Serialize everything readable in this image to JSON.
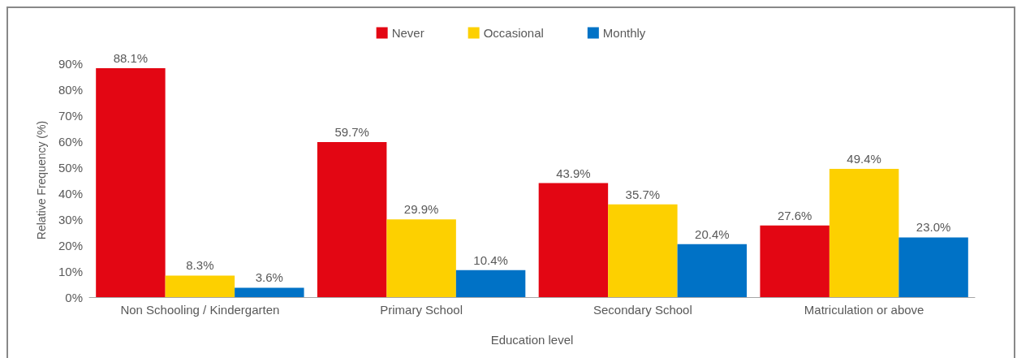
{
  "chart_data": {
    "type": "bar",
    "xlabel": "Education level",
    "ylabel": "Relative Frequency (%)",
    "categories": [
      "Non Schooling / Kindergarten",
      "Primary School",
      "Secondary School",
      "Matriculation or above"
    ],
    "series": [
      {
        "name": "Never",
        "color": "#e30613",
        "values": [
          88.1,
          59.7,
          43.9,
          27.6
        ],
        "value_labels": [
          "88.1%",
          "59.7%",
          "43.9%",
          "27.6%"
        ]
      },
      {
        "name": "Occasional",
        "color": "#fdd000",
        "values": [
          8.3,
          29.9,
          35.7,
          49.4
        ],
        "value_labels": [
          "8.3%",
          "29.9%",
          "35.7%",
          "49.4%"
        ]
      },
      {
        "name": "Monthly",
        "color": "#0072c6",
        "values": [
          3.6,
          10.4,
          20.4,
          23.0
        ],
        "value_labels": [
          "3.6%",
          "10.4%",
          "20.4%",
          "23.0%"
        ]
      }
    ],
    "ylim": [
      0,
      90
    ],
    "yticks": [
      {
        "value": 0,
        "label": "0%"
      },
      {
        "value": 10,
        "label": "10%"
      },
      {
        "value": 20,
        "label": "20%"
      },
      {
        "value": 30,
        "label": "30%"
      },
      {
        "value": 40,
        "label": "40%"
      },
      {
        "value": 50,
        "label": "50%"
      },
      {
        "value": 60,
        "label": "60%"
      },
      {
        "value": 70,
        "label": "70%"
      },
      {
        "value": 80,
        "label": "80%"
      },
      {
        "value": 90,
        "label": "90%"
      }
    ],
    "grid": false,
    "legend": "top"
  }
}
